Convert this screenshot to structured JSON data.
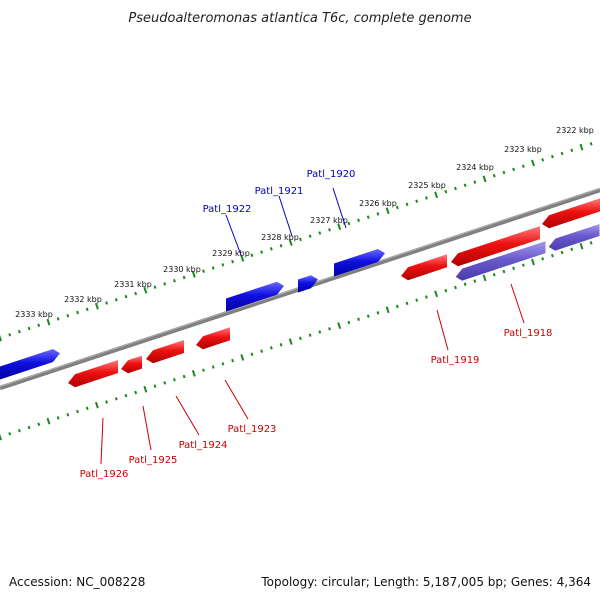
{
  "title": "Pseudoalteromonas atlantica T6c, complete genome",
  "footer": {
    "accession": "Accession: NC_008228",
    "summary": "Topology: circular; Length: 5,187,005 bp; Genes: 4,364"
  },
  "colors": {
    "forward_gene": "#1010e0",
    "reverse_gene": "#ee1111",
    "selected_gene": "#6a5acd",
    "backbone": "#808080",
    "ticks": "#1a8a1a",
    "forward_label": "#0000c0",
    "reverse_label": "#cc0000"
  },
  "scale": {
    "unit": "kbp",
    "labels": [
      "2322 kbp",
      "2323 kbp",
      "2324 kbp",
      "2325 kbp",
      "2326 kbp",
      "2327 kbp",
      "2328 kbp",
      "2329 kbp",
      "2330 kbp",
      "2331 kbp",
      "2332 kbp",
      "2333 kbp"
    ]
  },
  "genes": [
    {
      "name": "Patl_1918",
      "strand": "reverse",
      "selected": true
    },
    {
      "name": "Patl_1919",
      "strand": "reverse"
    },
    {
      "name": "Patl_1920",
      "strand": "forward"
    },
    {
      "name": "Patl_1921",
      "strand": "forward"
    },
    {
      "name": "Patl_1922",
      "strand": "forward"
    },
    {
      "name": "Patl_1923",
      "strand": "reverse"
    },
    {
      "name": "Patl_1924",
      "strand": "reverse"
    },
    {
      "name": "Patl_1925",
      "strand": "reverse"
    },
    {
      "name": "Patl_1926",
      "strand": "reverse"
    }
  ]
}
